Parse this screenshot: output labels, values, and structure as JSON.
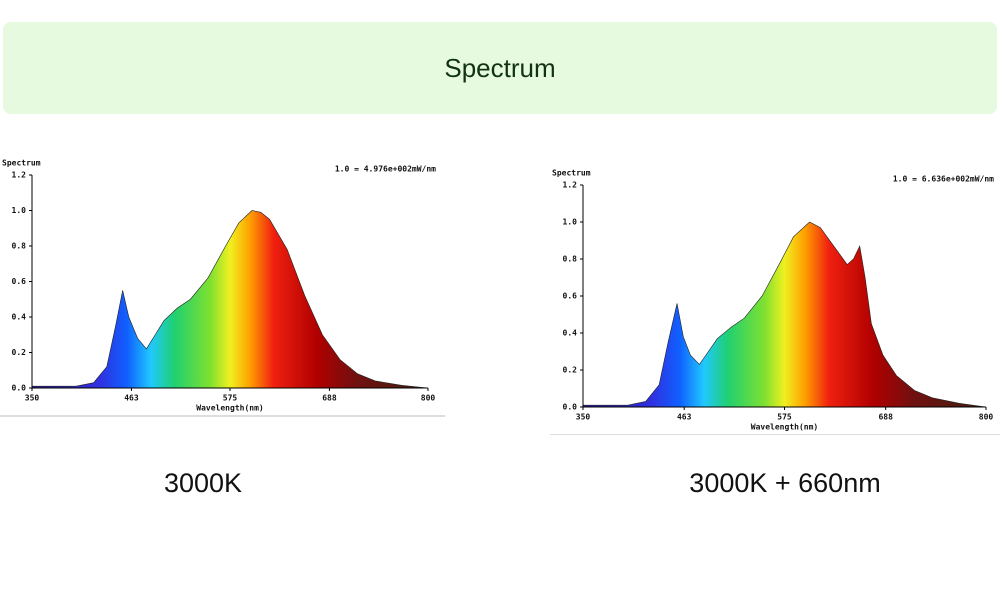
{
  "header": {
    "title": "Spectrum"
  },
  "chart_data": [
    {
      "type": "area",
      "caption": "3000K",
      "title": "Spectrum",
      "annotation": "1.0 = 4.976e+002mW/nm",
      "x_label": "Wavelength(nm)",
      "xlim": [
        350,
        800
      ],
      "xticks": [
        350,
        463,
        575,
        688,
        800
      ],
      "ylim": [
        0,
        1.2
      ],
      "yticks": [
        {
          "value": 0,
          "label": "0.0"
        },
        0.2,
        0.4,
        0.6,
        0.8,
        {
          "value": 1,
          "label": "1.0"
        },
        1.2
      ],
      "x": [
        350,
        400,
        420,
        435,
        445,
        453,
        460,
        470,
        480,
        490,
        500,
        515,
        530,
        550,
        570,
        585,
        600,
        610,
        620,
        640,
        660,
        680,
        700,
        720,
        740,
        770,
        800
      ],
      "values": [
        0.01,
        0.01,
        0.03,
        0.12,
        0.35,
        0.55,
        0.4,
        0.28,
        0.22,
        0.3,
        0.38,
        0.45,
        0.5,
        0.62,
        0.8,
        0.93,
        1.0,
        0.99,
        0.95,
        0.78,
        0.52,
        0.3,
        0.16,
        0.08,
        0.04,
        0.015,
        0.0
      ]
    },
    {
      "type": "area",
      "caption": "3000K + 660nm",
      "title": "Spectrum",
      "annotation": "1.0 = 6.636e+002mW/nm",
      "x_label": "Wavelength(nm)",
      "xlim": [
        350,
        800
      ],
      "xticks": [
        350,
        463,
        575,
        688,
        800
      ],
      "ylim": [
        0,
        1.2
      ],
      "yticks": [
        {
          "value": 0,
          "label": "0.0"
        },
        0.2,
        0.4,
        0.6,
        0.8,
        {
          "value": 1,
          "label": "1.0"
        },
        1.2
      ],
      "x": [
        350,
        400,
        420,
        435,
        445,
        455,
        462,
        470,
        480,
        490,
        500,
        515,
        530,
        550,
        570,
        585,
        603,
        615,
        630,
        645,
        652,
        659,
        665,
        672,
        685,
        700,
        720,
        740,
        770,
        800
      ],
      "values": [
        0.01,
        0.01,
        0.03,
        0.12,
        0.35,
        0.56,
        0.38,
        0.28,
        0.23,
        0.3,
        0.37,
        0.43,
        0.48,
        0.6,
        0.78,
        0.92,
        1.0,
        0.97,
        0.87,
        0.77,
        0.8,
        0.87,
        0.7,
        0.45,
        0.28,
        0.17,
        0.09,
        0.05,
        0.02,
        0.0
      ]
    }
  ]
}
